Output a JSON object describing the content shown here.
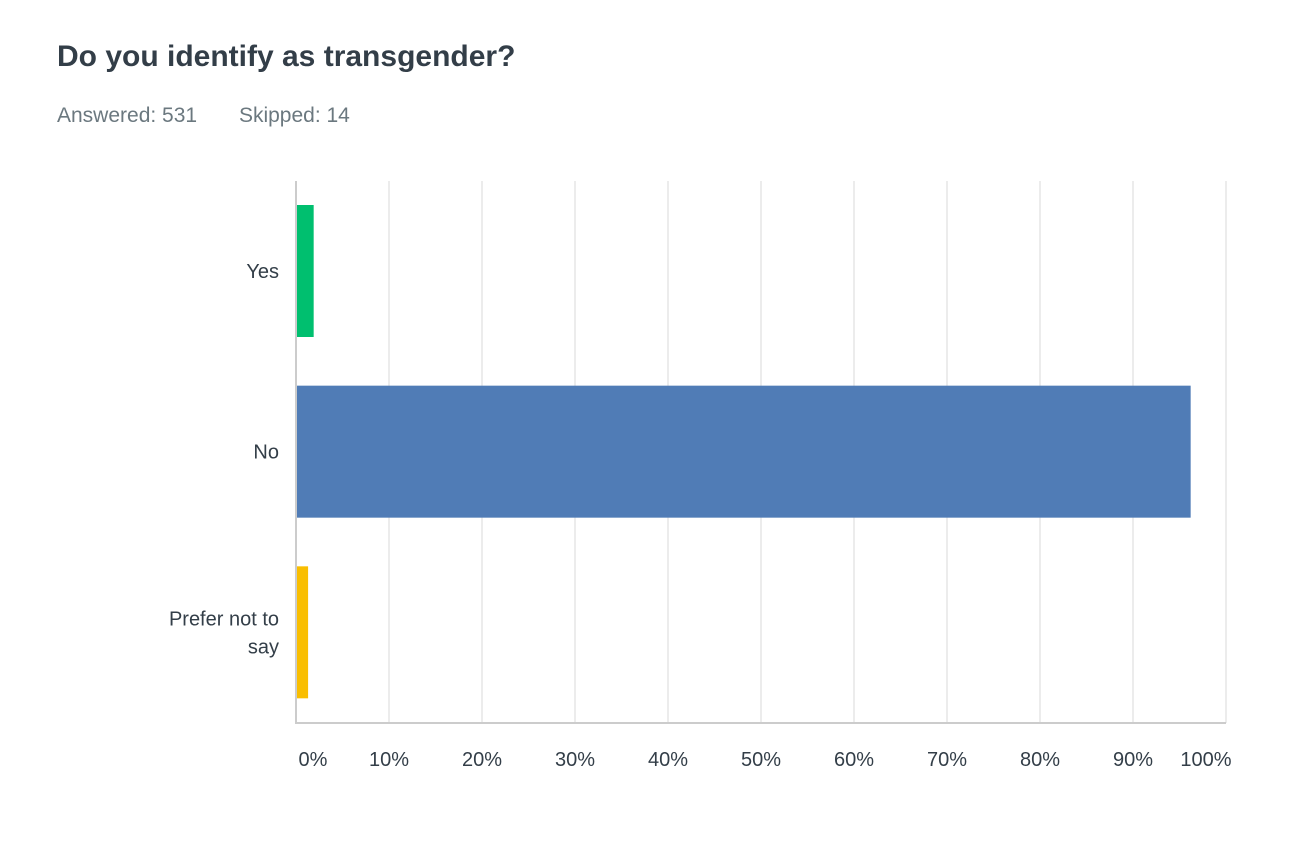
{
  "question": {
    "title": "Do you identify as transgender?",
    "answered": "Answered: 531",
    "skipped": "Skipped: 14"
  },
  "chart_data": {
    "type": "bar",
    "orientation": "horizontal",
    "title": "Do you identify as transgender?",
    "categories": [
      "Yes",
      "No",
      "Prefer not to say"
    ],
    "values": [
      1.9,
      96.2,
      1.3
    ],
    "colors": [
      "#00bf6f",
      "#507cb6",
      "#f9be00"
    ],
    "xlim": [
      0,
      100
    ],
    "ticks": [
      "0%",
      "10%",
      "20%",
      "30%",
      "40%",
      "50%",
      "60%",
      "70%",
      "80%",
      "90%",
      "100%"
    ],
    "grid": true
  }
}
